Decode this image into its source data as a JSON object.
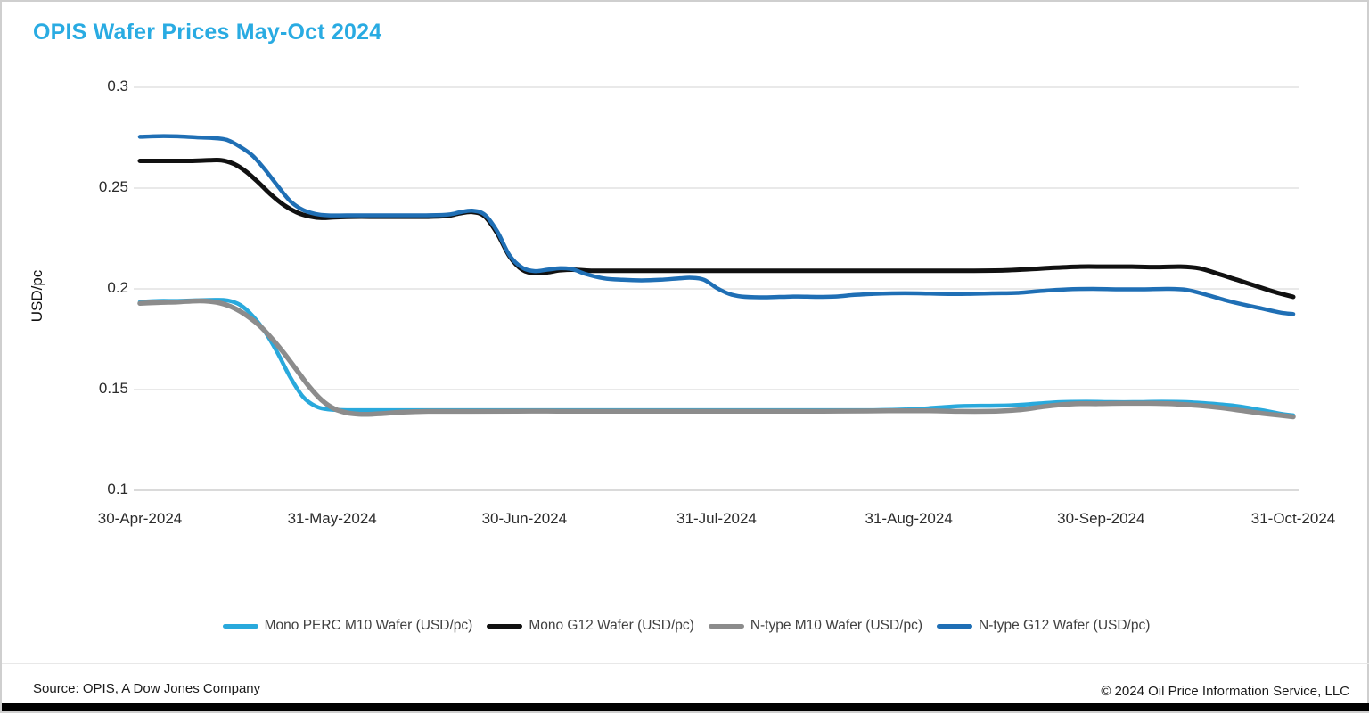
{
  "title": "OPIS Wafer Prices May-Oct 2024",
  "footer": {
    "source": "Source: OPIS, A Dow Jones Company",
    "copyright": "© 2024 Oil Price Information Service, LLC"
  },
  "colors": {
    "title": "#29ABE2",
    "grid": "#DCDCDC",
    "axis_line": "#C4C4C4",
    "tick_text": "#2B2B2B",
    "legend_text": "#404040"
  },
  "chart_data": {
    "type": "line",
    "title": "OPIS Wafer Prices May-Oct 2024",
    "xlabel": "",
    "ylabel": "USD/pc",
    "x_unit": "days since 30-Apr-2024",
    "x_range": [
      0,
      184
    ],
    "ylim": [
      0.1,
      0.3
    ],
    "grid": "horizontal",
    "legend_position": "bottom",
    "y_ticks": [
      0.3,
      0.25,
      0.2,
      0.15,
      0.1
    ],
    "y_tick_labels": [
      "0.3",
      "0.25",
      "0.2",
      "0.15",
      "0.1"
    ],
    "x_tick_labels": [
      "30-Apr-2024",
      "31-May-2024",
      "30-Jun-2024",
      "31-Jul-2024",
      "31-Aug-2024",
      "30-Sep-2024",
      "31-Oct-2024"
    ],
    "series": [
      {
        "name": "Mono PERC M10 Wafer (USD/pc)",
        "color": "#29A9DC",
        "width": 4.5,
        "points": [
          [
            0,
            0.1935
          ],
          [
            3,
            0.194
          ],
          [
            6,
            0.194
          ],
          [
            9,
            0.1943
          ],
          [
            12,
            0.1945
          ],
          [
            14,
            0.1942
          ],
          [
            16,
            0.192
          ],
          [
            18,
            0.1865
          ],
          [
            20,
            0.1785
          ],
          [
            22,
            0.168
          ],
          [
            24,
            0.156
          ],
          [
            26,
            0.1465
          ],
          [
            28,
            0.1418
          ],
          [
            30,
            0.1402
          ],
          [
            33,
            0.1398
          ],
          [
            36,
            0.1398
          ],
          [
            40,
            0.1398
          ],
          [
            47,
            0.1398
          ],
          [
            54,
            0.1398
          ],
          [
            61,
            0.1398
          ],
          [
            68,
            0.1398
          ],
          [
            75,
            0.1398
          ],
          [
            82,
            0.1398
          ],
          [
            89,
            0.1398
          ],
          [
            96,
            0.1398
          ],
          [
            103,
            0.1398
          ],
          [
            110,
            0.1398
          ],
          [
            117,
            0.1398
          ],
          [
            123,
            0.1402
          ],
          [
            127,
            0.141
          ],
          [
            131,
            0.1418
          ],
          [
            135,
            0.142
          ],
          [
            139,
            0.1422
          ],
          [
            143,
            0.143
          ],
          [
            147,
            0.1438
          ],
          [
            151,
            0.144
          ],
          [
            155,
            0.1438
          ],
          [
            159,
            0.1438
          ],
          [
            163,
            0.144
          ],
          [
            167,
            0.1438
          ],
          [
            171,
            0.143
          ],
          [
            175,
            0.1418
          ],
          [
            179,
            0.1398
          ],
          [
            182,
            0.138
          ],
          [
            184,
            0.1372
          ]
        ]
      },
      {
        "name": "Mono G12 Wafer (USD/pc)",
        "color": "#111111",
        "width": 5,
        "points": [
          [
            0,
            0.2635
          ],
          [
            4,
            0.2635
          ],
          [
            8,
            0.2635
          ],
          [
            11,
            0.2638
          ],
          [
            13,
            0.2638
          ],
          [
            15,
            0.262
          ],
          [
            17,
            0.258
          ],
          [
            19,
            0.2525
          ],
          [
            21,
            0.2465
          ],
          [
            23,
            0.2415
          ],
          [
            25,
            0.238
          ],
          [
            27,
            0.236
          ],
          [
            29,
            0.2352
          ],
          [
            31,
            0.2355
          ],
          [
            34,
            0.2358
          ],
          [
            38,
            0.2358
          ],
          [
            42,
            0.2358
          ],
          [
            46,
            0.2358
          ],
          [
            49,
            0.2362
          ],
          [
            51,
            0.2375
          ],
          [
            53,
            0.2382
          ],
          [
            55,
            0.236
          ],
          [
            57,
            0.2275
          ],
          [
            59,
            0.216
          ],
          [
            61,
            0.2095
          ],
          [
            63,
            0.2078
          ],
          [
            65,
            0.2082
          ],
          [
            67,
            0.2092
          ],
          [
            69,
            0.2095
          ],
          [
            72,
            0.209
          ],
          [
            76,
            0.209
          ],
          [
            83,
            0.209
          ],
          [
            90,
            0.209
          ],
          [
            97,
            0.209
          ],
          [
            104,
            0.209
          ],
          [
            111,
            0.209
          ],
          [
            118,
            0.209
          ],
          [
            125,
            0.209
          ],
          [
            132,
            0.209
          ],
          [
            138,
            0.2092
          ],
          [
            142,
            0.2098
          ],
          [
            146,
            0.2105
          ],
          [
            150,
            0.211
          ],
          [
            154,
            0.211
          ],
          [
            158,
            0.211
          ],
          [
            162,
            0.2108
          ],
          [
            166,
            0.211
          ],
          [
            169,
            0.2102
          ],
          [
            172,
            0.2075
          ],
          [
            175,
            0.2045
          ],
          [
            178,
            0.2015
          ],
          [
            181,
            0.1985
          ],
          [
            184,
            0.196
          ]
        ]
      },
      {
        "name": "N-type M10 Wafer (USD/pc)",
        "color": "#8C8C8C",
        "width": 5.5,
        "points": [
          [
            0,
            0.1928
          ],
          [
            3,
            0.1932
          ],
          [
            6,
            0.1935
          ],
          [
            9,
            0.194
          ],
          [
            11,
            0.1938
          ],
          [
            13,
            0.1928
          ],
          [
            15,
            0.1905
          ],
          [
            17,
            0.1868
          ],
          [
            19,
            0.182
          ],
          [
            21,
            0.1755
          ],
          [
            23,
            0.168
          ],
          [
            25,
            0.1598
          ],
          [
            27,
            0.1515
          ],
          [
            29,
            0.1448
          ],
          [
            31,
            0.1405
          ],
          [
            33,
            0.1385
          ],
          [
            35,
            0.1378
          ],
          [
            37,
            0.1378
          ],
          [
            39,
            0.1382
          ],
          [
            42,
            0.1388
          ],
          [
            46,
            0.1392
          ],
          [
            53,
            0.1392
          ],
          [
            60,
            0.1393
          ],
          [
            67,
            0.1393
          ],
          [
            74,
            0.1393
          ],
          [
            81,
            0.1393
          ],
          [
            88,
            0.1393
          ],
          [
            95,
            0.1393
          ],
          [
            102,
            0.1393
          ],
          [
            109,
            0.1393
          ],
          [
            116,
            0.1394
          ],
          [
            121,
            0.1395
          ],
          [
            126,
            0.1395
          ],
          [
            131,
            0.1392
          ],
          [
            135,
            0.1392
          ],
          [
            138,
            0.1395
          ],
          [
            141,
            0.1402
          ],
          [
            144,
            0.1415
          ],
          [
            147,
            0.1425
          ],
          [
            150,
            0.143
          ],
          [
            153,
            0.143
          ],
          [
            157,
            0.1432
          ],
          [
            161,
            0.1432
          ],
          [
            164,
            0.143
          ],
          [
            167,
            0.1425
          ],
          [
            170,
            0.1418
          ],
          [
            173,
            0.1408
          ],
          [
            176,
            0.1395
          ],
          [
            179,
            0.1382
          ],
          [
            182,
            0.1372
          ],
          [
            184,
            0.1365
          ]
        ]
      },
      {
        "name": "N-type G12 Wafer (USD/pc)",
        "color": "#1F6FB5",
        "width": 4.5,
        "points": [
          [
            0,
            0.2755
          ],
          [
            3,
            0.2758
          ],
          [
            6,
            0.2757
          ],
          [
            9,
            0.2752
          ],
          [
            12,
            0.2748
          ],
          [
            14,
            0.2738
          ],
          [
            16,
            0.2705
          ],
          [
            18,
            0.266
          ],
          [
            20,
            0.259
          ],
          [
            22,
            0.251
          ],
          [
            24,
            0.2435
          ],
          [
            26,
            0.2392
          ],
          [
            28,
            0.2372
          ],
          [
            30,
            0.2365
          ],
          [
            33,
            0.2365
          ],
          [
            37,
            0.2365
          ],
          [
            41,
            0.2365
          ],
          [
            45,
            0.2365
          ],
          [
            49,
            0.2368
          ],
          [
            51,
            0.238
          ],
          [
            53,
            0.2388
          ],
          [
            55,
            0.2368
          ],
          [
            57,
            0.2285
          ],
          [
            59,
            0.2165
          ],
          [
            61,
            0.2105
          ],
          [
            63,
            0.2088
          ],
          [
            65,
            0.2095
          ],
          [
            67,
            0.2102
          ],
          [
            69,
            0.2098
          ],
          [
            71,
            0.2075
          ],
          [
            74,
            0.2052
          ],
          [
            77,
            0.2045
          ],
          [
            80,
            0.2042
          ],
          [
            83,
            0.2045
          ],
          [
            86,
            0.2052
          ],
          [
            88,
            0.2055
          ],
          [
            90,
            0.2045
          ],
          [
            92,
            0.2005
          ],
          [
            94,
            0.1975
          ],
          [
            96,
            0.1962
          ],
          [
            99,
            0.1958
          ],
          [
            102,
            0.196
          ],
          [
            105,
            0.1962
          ],
          [
            108,
            0.196
          ],
          [
            111,
            0.1962
          ],
          [
            114,
            0.197
          ],
          [
            117,
            0.1975
          ],
          [
            120,
            0.1978
          ],
          [
            124,
            0.1978
          ],
          [
            128,
            0.1975
          ],
          [
            132,
            0.1975
          ],
          [
            136,
            0.1978
          ],
          [
            140,
            0.198
          ],
          [
            144,
            0.199
          ],
          [
            148,
            0.1998
          ],
          [
            152,
            0.2
          ],
          [
            156,
            0.1998
          ],
          [
            160,
            0.1998
          ],
          [
            164,
            0.2
          ],
          [
            167,
            0.1995
          ],
          [
            170,
            0.1972
          ],
          [
            173,
            0.1945
          ],
          [
            176,
            0.1922
          ],
          [
            179,
            0.1902
          ],
          [
            182,
            0.1882
          ],
          [
            184,
            0.1875
          ]
        ]
      }
    ]
  }
}
